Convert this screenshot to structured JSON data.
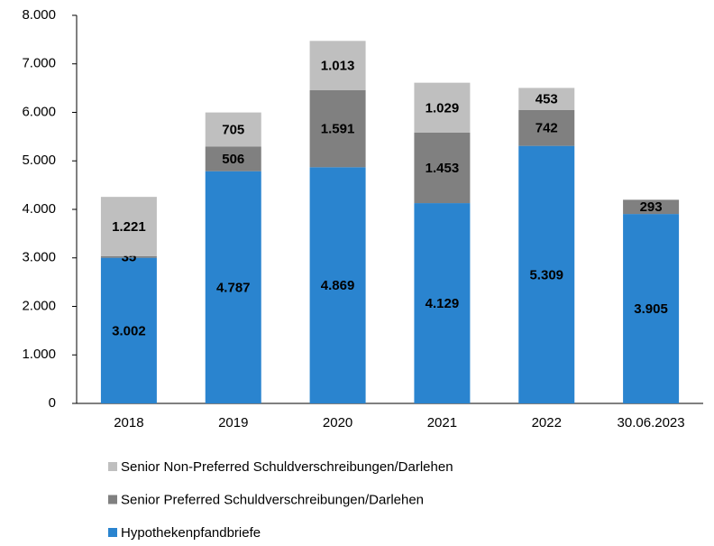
{
  "chart_data": {
    "type": "stacked_bar",
    "categories": [
      "2018",
      "2019",
      "2020",
      "2021",
      "2022",
      "30.06.2023"
    ],
    "series": [
      {
        "name": "Hypothekenpfandbriefe",
        "color": "#2a84cf",
        "label_color": "#ffffff",
        "values": [
          3002,
          4787,
          4869,
          4129,
          5309,
          3905
        ],
        "value_labels": [
          "3.002",
          "4.787",
          "4.869",
          "4.129",
          "5.309",
          "3.905"
        ]
      },
      {
        "name": "Senior Preferred Schuldverschreibungen/Darlehen",
        "color": "#808080",
        "label_color": "#ffffff",
        "values": [
          35,
          506,
          1591,
          1453,
          742,
          293
        ],
        "value_labels": [
          "35",
          "506",
          "1.591",
          "1.453",
          "742",
          "293"
        ]
      },
      {
        "name": "Senior Non-Preferred Schuldverschreibungen/Darlehen",
        "color": "#bfbfbf",
        "label_color": "#000000",
        "values": [
          1221,
          705,
          1013,
          1029,
          453,
          null
        ],
        "value_labels": [
          "1.221",
          "705",
          "1.013",
          "1.029",
          "453",
          null
        ]
      }
    ],
    "ylim": [
      0,
      8000
    ],
    "yticks": [
      0,
      {
        "value": 1000,
        "label": "1.000"
      },
      {
        "value": 2000,
        "label": "2.000"
      },
      {
        "value": 3000,
        "label": "3.000"
      },
      {
        "value": 4000,
        "label": "4.000"
      },
      {
        "value": 5000,
        "label": "5.000"
      },
      {
        "value": 6000,
        "label": "6.000"
      },
      {
        "value": 7000,
        "label": "7.000"
      },
      {
        "value": 8000,
        "label": "8.000"
      }
    ],
    "grid": false
  }
}
